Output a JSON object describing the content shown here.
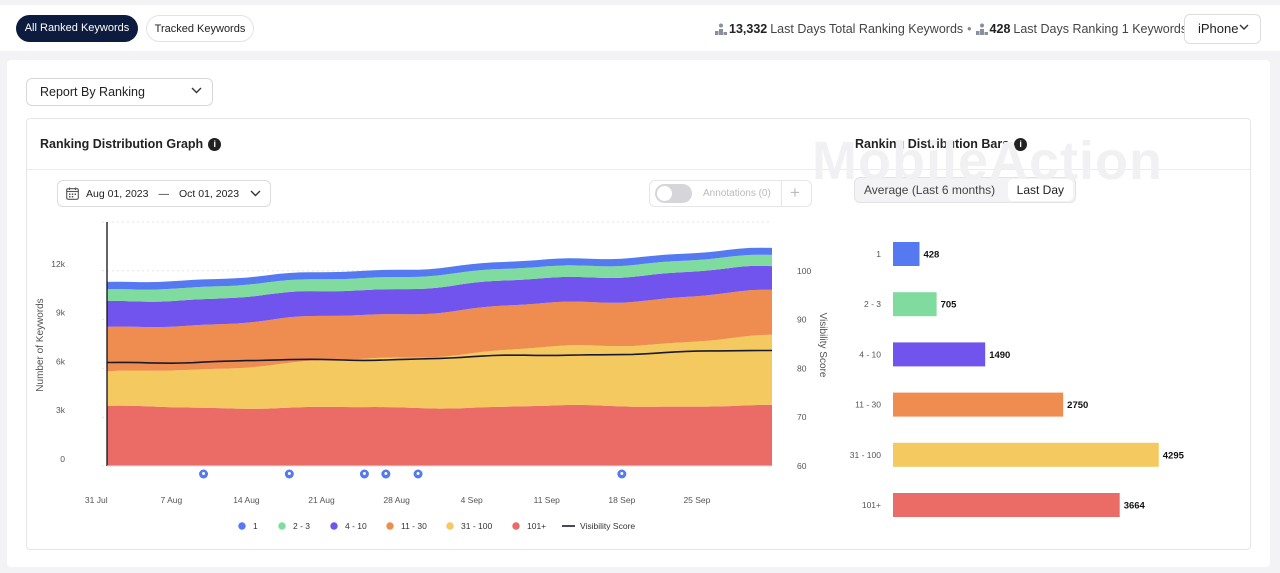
{
  "tabs": [
    {
      "label": "All Ranked Keywords",
      "active": true
    },
    {
      "label": "Tracked Keywords",
      "active": false
    }
  ],
  "stats": {
    "total_value": "13,332",
    "total_label": "Last Days Total Ranking Keywords",
    "separator": "•",
    "rank1_value": "428",
    "rank1_label": "Last Days Ranking 1 Keywords"
  },
  "device_select": {
    "value": "iPhone"
  },
  "report_select": {
    "value": "Report By Ranking"
  },
  "graph": {
    "title": "Ranking Distribution Graph",
    "info_glyph": "i",
    "date_start": "Aug 01, 2023",
    "date_dash": "—",
    "date_end": "Oct 01, 2023",
    "annotations_label": "Annotations (0)",
    "add_symbol": "+"
  },
  "bars_section": {
    "title": "Ranking Distribution Bars",
    "info_glyph": "i",
    "segments": [
      {
        "label": "Average (Last 6 months)",
        "selected": false
      },
      {
        "label": "Last Day",
        "selected": true
      }
    ],
    "watermark": "MobileAction"
  },
  "colors": {
    "r1": "#5479f0",
    "r2_3": "#7fdb9e",
    "r4_10": "#7153ee",
    "r11_30": "#ee8d4f",
    "r31_100": "#f4c95f",
    "r101": "#eb6b67",
    "visibility": "#1a1a2e",
    "navy": "#0d1b3f"
  },
  "chart_data": [
    {
      "type": "area",
      "title": "Ranking Distribution Graph",
      "ylabel": "Number of Keywords",
      "y2label": "Visibility Score",
      "ylim": [
        0,
        15000
      ],
      "y2lim": [
        60,
        110
      ],
      "y_ticks": [
        "0",
        "3k",
        "6k",
        "9k",
        "12k"
      ],
      "y2_ticks": [
        "60",
        "70",
        "80",
        "90",
        "100"
      ],
      "x_ticks": [
        "31 Jul",
        "7 Aug",
        "14 Aug",
        "21 Aug",
        "28 Aug",
        "4 Sep",
        "11 Sep",
        "18 Sep",
        "25 Sep"
      ],
      "annotation_days": [
        9,
        17,
        24,
        26,
        29,
        48
      ],
      "categories": [
        "1",
        "2 - 3",
        "4 - 10",
        "11 - 30",
        "31 - 100",
        "101+"
      ],
      "series": [
        {
          "name": "101+",
          "start": 3600,
          "end": 3664
        },
        {
          "name": "31 - 100",
          "start": 2100,
          "end": 4295
        },
        {
          "name": "11 - 30",
          "start": 2700,
          "end": 2750
        },
        {
          "name": "4 - 10",
          "start": 1600,
          "end": 1490
        },
        {
          "name": "2 - 3",
          "start": 750,
          "end": 705
        },
        {
          "name": "1",
          "start": 450,
          "end": 428
        }
      ],
      "visibility_score": {
        "name": "Visibility Score",
        "start": 81,
        "end": 83.5
      },
      "legend": [
        "1",
        "2 - 3",
        "4 - 10",
        "11 - 30",
        "31 - 100",
        "101+",
        "Visibility Score"
      ]
    },
    {
      "type": "bar",
      "title": "Ranking Distribution Bars",
      "categories": [
        "1",
        "2 - 3",
        "4 - 10",
        "11 - 30",
        "31 - 100",
        "101+"
      ],
      "values": [
        428,
        705,
        1490,
        2750,
        4295,
        3664
      ],
      "xlim": [
        0,
        4800
      ]
    }
  ]
}
